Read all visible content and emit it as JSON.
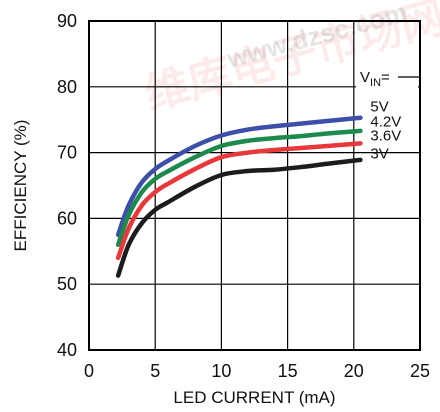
{
  "chart_data": {
    "type": "line",
    "title": "",
    "xlabel": "LED CURRENT (mA)",
    "ylabel": "EFFICIENCY (%)",
    "xlim": [
      0,
      25
    ],
    "ylim": [
      40,
      90
    ],
    "xticks": [
      "0",
      "5",
      "10",
      "15",
      "20",
      "25"
    ],
    "yticks": [
      "40",
      "50",
      "60",
      "70",
      "80",
      "90"
    ],
    "grid": true,
    "legend": {
      "title_main": "V",
      "title_sub": "IN",
      "title_suffix": "=",
      "placement": "top-right"
    },
    "series": [
      {
        "name": "5V",
        "color": "#3d4fa8",
        "x": [
          2.2,
          3,
          4,
          5,
          6,
          8,
          10,
          12,
          14,
          16,
          18,
          20.5
        ],
        "y": [
          57.5,
          62,
          65.5,
          67.5,
          68.8,
          71,
          72.6,
          73.5,
          74,
          74.4,
          74.8,
          75.3
        ]
      },
      {
        "name": "4.2V",
        "color": "#1b8a4c",
        "x": [
          2.2,
          3,
          4,
          5,
          6,
          8,
          10,
          12,
          14,
          16,
          18,
          20.5
        ],
        "y": [
          56,
          60.5,
          64,
          66,
          67.2,
          69.3,
          71,
          71.8,
          72.2,
          72.5,
          72.9,
          73.3
        ]
      },
      {
        "name": "3.6V",
        "color": "#e8383b",
        "x": [
          2.2,
          3,
          4,
          5,
          6,
          8,
          10,
          12,
          14,
          16,
          18,
          20.5
        ],
        "y": [
          54,
          58.5,
          62,
          64,
          65.3,
          67.5,
          69.3,
          70,
          70.4,
          70.7,
          71,
          71.4
        ]
      },
      {
        "name": "3V",
        "color": "#1c1c1c",
        "x": [
          2.2,
          3,
          4,
          5,
          6,
          8,
          10,
          12,
          14,
          16,
          18,
          20.5
        ],
        "y": [
          51.3,
          56,
          59.3,
          61.3,
          62.5,
          64.8,
          66.6,
          67.2,
          67.4,
          67.8,
          68.3,
          68.9
        ]
      }
    ]
  },
  "watermark": {
    "left_text": "维库电子市场网",
    "right_text": "www.dzsc.com",
    "color": "#e8383b"
  }
}
